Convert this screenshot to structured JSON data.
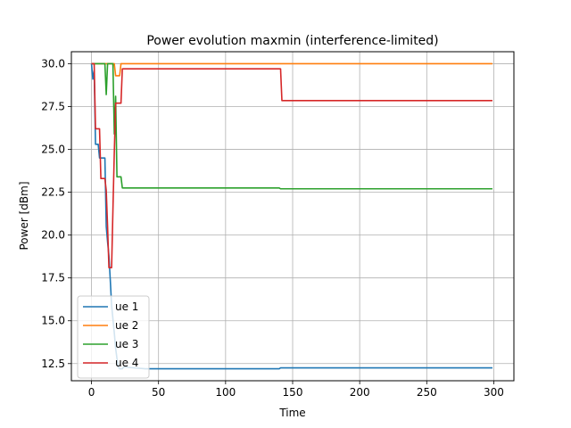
{
  "chart_data": {
    "type": "line",
    "title": "Power evolution maxmin (interference-limited)",
    "xlabel": "Time",
    "ylabel": "Power [dBm]",
    "xlim": [
      -15,
      315
    ],
    "ylim": [
      11.5,
      30.7
    ],
    "xticks": [
      0,
      50,
      100,
      150,
      200,
      250,
      300
    ],
    "yticks": [
      12.5,
      15.0,
      17.5,
      20.0,
      22.5,
      25.0,
      27.5,
      30.0
    ],
    "grid": true,
    "legend_position": "lower-left",
    "series": [
      {
        "name": "ue 1",
        "color": "#1f77b4",
        "points": [
          [
            0,
            30.0
          ],
          [
            1,
            29.1
          ],
          [
            2,
            29.6
          ],
          [
            3,
            25.3
          ],
          [
            5,
            25.3
          ],
          [
            6,
            24.5
          ],
          [
            10,
            24.5
          ],
          [
            11,
            20.5
          ],
          [
            12,
            19.6
          ],
          [
            13,
            18.8
          ],
          [
            14,
            17.4
          ],
          [
            15,
            15.9
          ],
          [
            16,
            15.1
          ],
          [
            17,
            14.3
          ],
          [
            18,
            13.4
          ],
          [
            19,
            12.8
          ],
          [
            20,
            12.3
          ],
          [
            21,
            12.2
          ],
          [
            23,
            12.2
          ],
          [
            24,
            12.3
          ],
          [
            40,
            12.2
          ],
          [
            140,
            12.2
          ],
          [
            141,
            12.25
          ],
          [
            299,
            12.25
          ]
        ]
      },
      {
        "name": "ue 2",
        "color": "#ff7f0e",
        "points": [
          [
            0,
            30.0
          ],
          [
            17,
            30.0
          ],
          [
            18,
            29.3
          ],
          [
            21,
            29.3
          ],
          [
            22,
            30.0
          ],
          [
            299,
            30.0
          ]
        ]
      },
      {
        "name": "ue 3",
        "color": "#2ca02c",
        "points": [
          [
            0,
            30.0
          ],
          [
            10,
            30.0
          ],
          [
            11,
            28.2
          ],
          [
            12,
            30.0
          ],
          [
            16,
            30.0
          ],
          [
            17,
            25.9
          ],
          [
            18,
            28.1
          ],
          [
            19,
            23.4
          ],
          [
            22,
            23.4
          ],
          [
            23,
            22.75
          ],
          [
            140,
            22.75
          ],
          [
            141,
            22.7
          ],
          [
            299,
            22.7
          ]
        ]
      },
      {
        "name": "ue 4",
        "color": "#d62728",
        "points": [
          [
            0,
            30.0
          ],
          [
            2,
            30.0
          ],
          [
            3,
            26.2
          ],
          [
            6,
            26.2
          ],
          [
            7,
            23.3
          ],
          [
            10,
            23.3
          ],
          [
            11,
            22.6
          ],
          [
            12,
            20.5
          ],
          [
            13,
            18.1
          ],
          [
            15,
            18.1
          ],
          [
            16,
            21.5
          ],
          [
            17,
            24.8
          ],
          [
            18,
            27.7
          ],
          [
            22,
            27.7
          ],
          [
            23,
            29.7
          ],
          [
            141,
            29.7
          ],
          [
            142,
            27.85
          ],
          [
            299,
            27.85
          ]
        ]
      }
    ]
  }
}
